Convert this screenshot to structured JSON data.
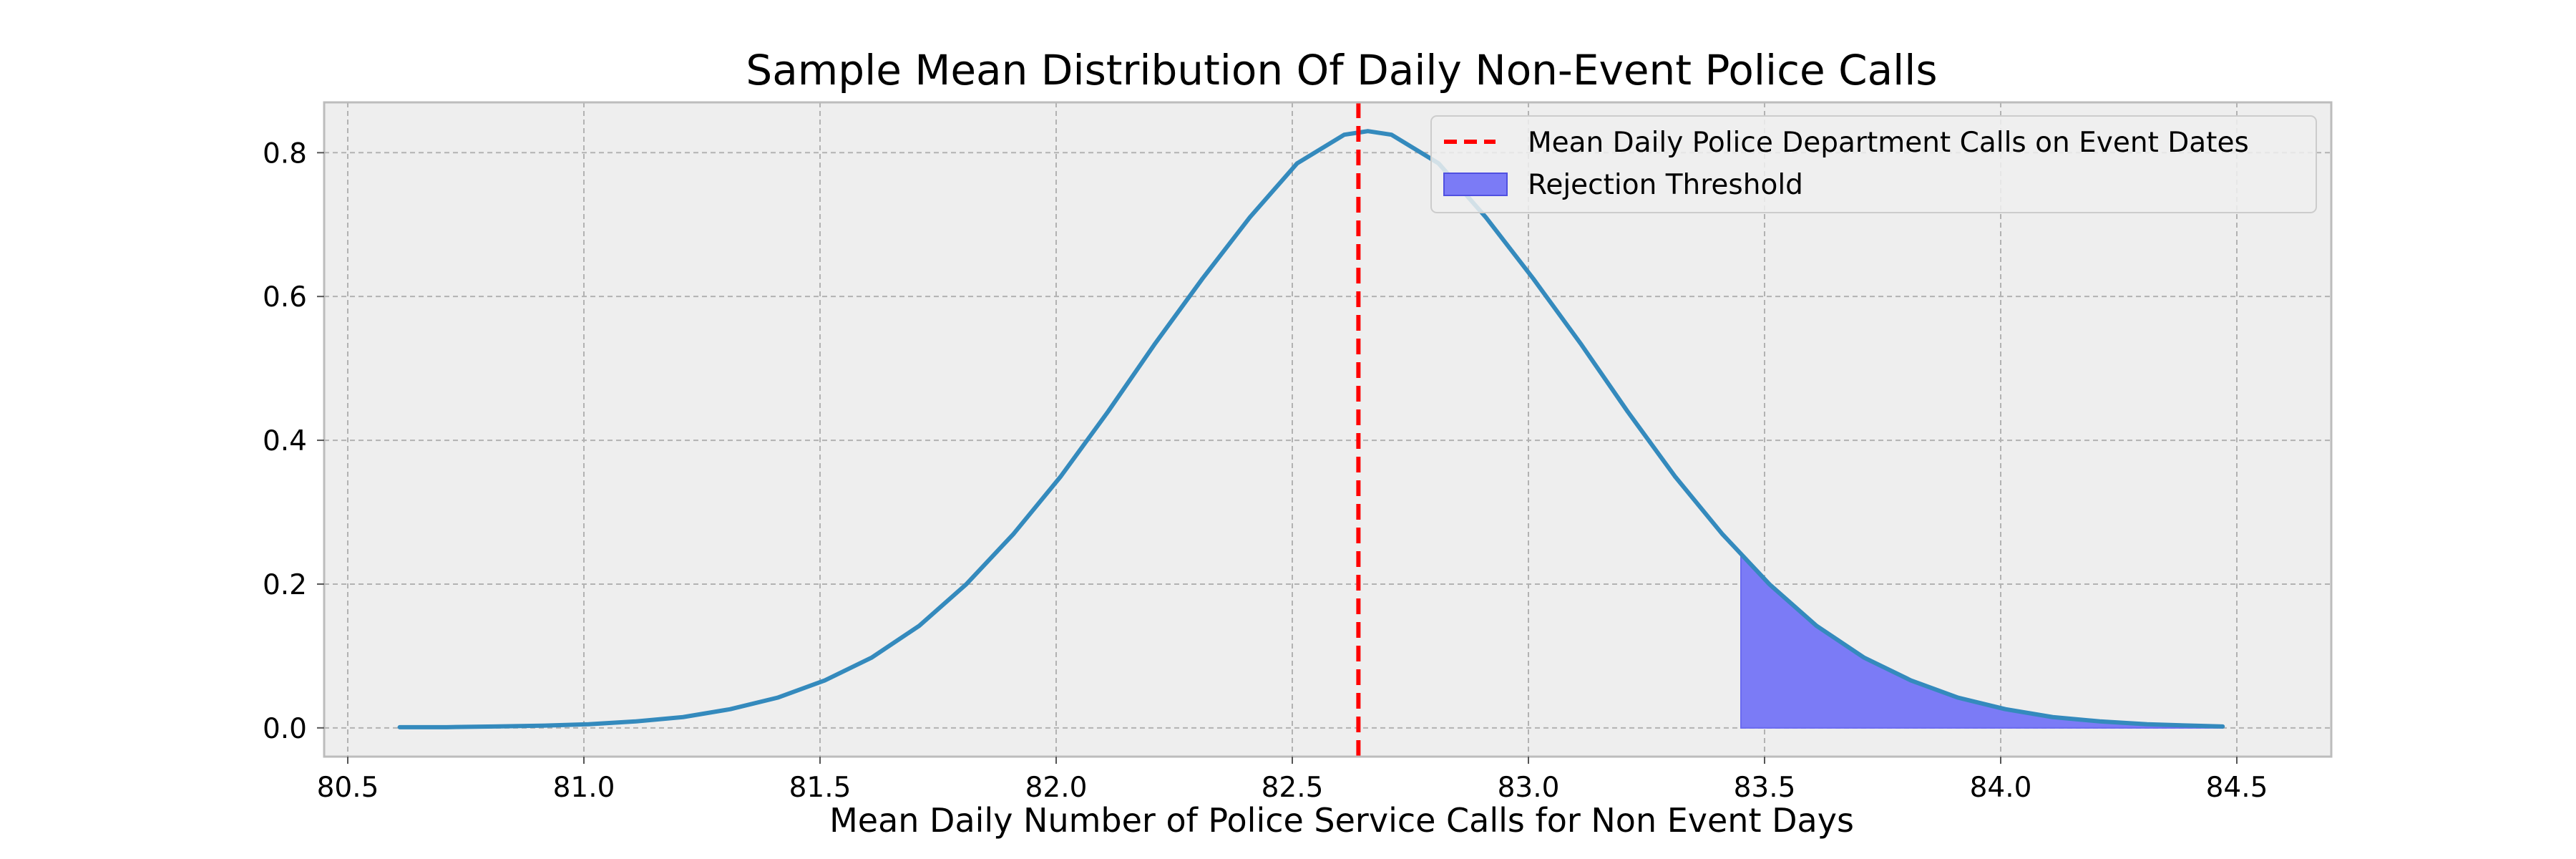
{
  "chart_data": {
    "type": "line",
    "title": "Sample Mean Distribution Of Daily Non-Event Police Calls",
    "xlabel": "Mean Daily Number of Police Service Calls for Non Event Days",
    "ylabel": "",
    "xlim": [
      80.45,
      84.7
    ],
    "ylim": [
      -0.04,
      0.87
    ],
    "x_ticks": [
      "80.5",
      "81.0",
      "81.5",
      "82.0",
      "82.5",
      "83.0",
      "83.5",
      "84.0",
      "84.5"
    ],
    "y_ticks": [
      "0.0",
      "0.2",
      "0.4",
      "0.6",
      "0.8"
    ],
    "grid": true,
    "legend_position": "top-right",
    "series": [
      {
        "kind": "line",
        "color": "#348ABD",
        "x": [
          80.61,
          80.71,
          80.81,
          80.91,
          81.01,
          81.11,
          81.21,
          81.31,
          81.41,
          81.51,
          81.61,
          81.71,
          81.81,
          81.91,
          82.01,
          82.11,
          82.21,
          82.31,
          82.41,
          82.51,
          82.61,
          82.66,
          82.71,
          82.81,
          82.91,
          83.01,
          83.11,
          83.21,
          83.31,
          83.41,
          83.51,
          83.61,
          83.71,
          83.81,
          83.91,
          84.01,
          84.11,
          84.21,
          84.31,
          84.41,
          84.47
        ],
        "y": [
          0.001,
          0.001,
          0.002,
          0.003,
          0.005,
          0.009,
          0.015,
          0.026,
          0.042,
          0.066,
          0.098,
          0.142,
          0.2,
          0.27,
          0.35,
          0.44,
          0.535,
          0.625,
          0.71,
          0.785,
          0.825,
          0.83,
          0.825,
          0.785,
          0.71,
          0.625,
          0.535,
          0.44,
          0.35,
          0.27,
          0.2,
          0.142,
          0.098,
          0.066,
          0.042,
          0.026,
          0.015,
          0.009,
          0.005,
          0.003,
          0.002
        ]
      },
      {
        "kind": "vline",
        "name": "Mean Daily Police Department Calls on Event Dates",
        "color": "#FF0000",
        "x": 82.64
      },
      {
        "kind": "area",
        "name": "Rejection Threshold",
        "color": "#7B7BF6",
        "x_start": 83.45,
        "x_end": 84.47
      }
    ]
  }
}
